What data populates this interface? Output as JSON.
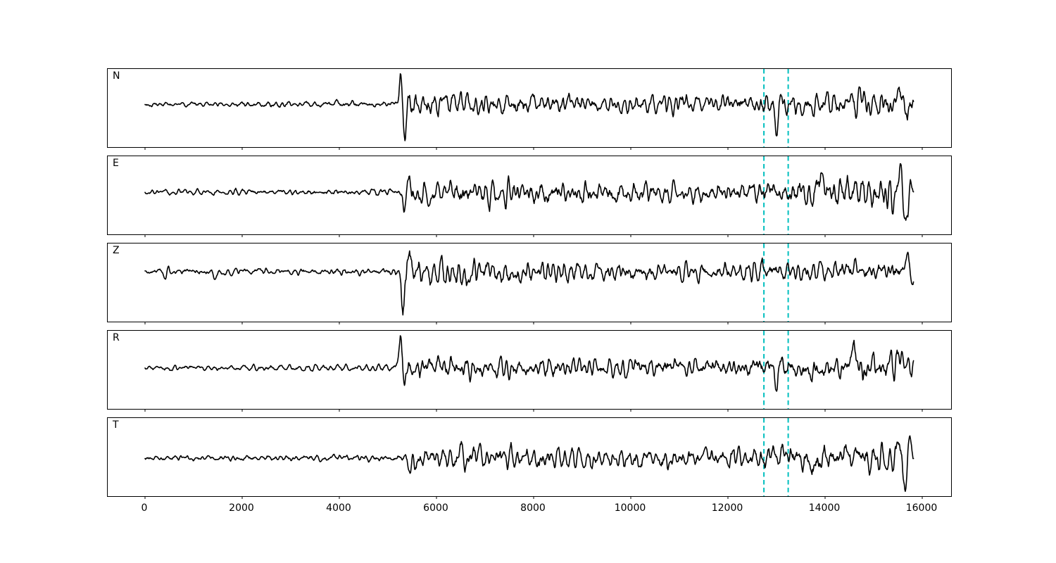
{
  "figure": {
    "background": "#ffffff",
    "plot_border_color": "#000000"
  },
  "chart_data": {
    "type": "line",
    "title": "",
    "xlabel": "",
    "ylabel": "",
    "grid": false,
    "legend": false,
    "description": "Five stacked seismogram component traces (N, E, Z, R, T) sharing one x-axis from 0 to ~15820 samples, with two vertical dashed teal event-window markers near x=12740 and x=13240. Quiet noise until a sharp arrival near x=5300, a coda, a secondary arrival inside the dashed window, and larger surface waves near the end of each trace.",
    "x_range": [
      -768,
      16594
    ],
    "x_data_end": 15820,
    "x_ticks": [
      0,
      2000,
      4000,
      6000,
      8000,
      10000,
      12000,
      14000,
      16000
    ],
    "x_tick_labels": [
      "0",
      "2000",
      "4000",
      "6000",
      "8000",
      "10000",
      "12000",
      "14000",
      "16000"
    ],
    "trace_color": "#000000",
    "trace_width": 1.6,
    "event_lines": {
      "x_values": [
        12740,
        13240
      ],
      "color": "#00bfbf",
      "style": "dashed",
      "dash": [
        6.5,
        4.5
      ],
      "width": 2
    },
    "channels": [
      {
        "label": "N",
        "seed": 101,
        "baseline": 50,
        "envelope": [
          [
            0,
            1.7
          ],
          [
            2500,
            1.9
          ],
          [
            4900,
            2.2
          ],
          [
            5180,
            2.5
          ],
          [
            5260,
            9
          ],
          [
            5500,
            8
          ],
          [
            6500,
            7
          ],
          [
            9000,
            6.2
          ],
          [
            12400,
            6
          ],
          [
            12700,
            7.5
          ],
          [
            13300,
            7
          ],
          [
            14000,
            8
          ],
          [
            15000,
            9
          ],
          [
            15500,
            10
          ],
          [
            15820,
            7
          ]
        ],
        "spikes": [
          [
            5270,
            34,
            55
          ],
          [
            5330,
            -38,
            60
          ],
          [
            12930,
            22,
            60
          ],
          [
            12990,
            -44,
            70
          ],
          [
            13080,
            18,
            60
          ],
          [
            15560,
            30,
            70
          ],
          [
            15650,
            -28,
            70
          ]
        ]
      },
      {
        "label": "E",
        "seed": 202,
        "baseline": 51,
        "envelope": [
          [
            0,
            1.6
          ],
          [
            3000,
            1.9
          ],
          [
            4900,
            2.1
          ],
          [
            5250,
            2.5
          ],
          [
            5330,
            8.5
          ],
          [
            5600,
            8.5
          ],
          [
            7500,
            8
          ],
          [
            10000,
            7
          ],
          [
            12400,
            6.5
          ],
          [
            12700,
            8
          ],
          [
            13400,
            7.5
          ],
          [
            14200,
            9
          ],
          [
            15000,
            10
          ],
          [
            15400,
            11
          ],
          [
            15820,
            8
          ]
        ],
        "spikes": [
          [
            5340,
            -26,
            55
          ],
          [
            5400,
            20,
            60
          ],
          [
            13900,
            24,
            80
          ],
          [
            15560,
            26,
            70
          ],
          [
            15660,
            -50,
            80
          ],
          [
            15740,
            20,
            60
          ]
        ]
      },
      {
        "label": "Z",
        "seed": 303,
        "baseline": 40,
        "envelope": [
          [
            0,
            1.8
          ],
          [
            1000,
            2.2
          ],
          [
            3000,
            2.0
          ],
          [
            4900,
            2.3
          ],
          [
            5200,
            3
          ],
          [
            5265,
            10
          ],
          [
            5600,
            9
          ],
          [
            7000,
            7.5
          ],
          [
            9000,
            6.5
          ],
          [
            12000,
            6
          ],
          [
            12700,
            6.5
          ],
          [
            13400,
            6
          ],
          [
            14500,
            6.5
          ],
          [
            15500,
            7
          ],
          [
            15820,
            6
          ]
        ],
        "spikes": [
          [
            430,
            -13,
            40
          ],
          [
            470,
            8,
            35
          ],
          [
            1440,
            -12,
            40
          ],
          [
            5240,
            30,
            45
          ],
          [
            5300,
            -64,
            70
          ],
          [
            5390,
            26,
            55
          ],
          [
            6600,
            -20,
            60
          ],
          [
            15700,
            24,
            60
          ],
          [
            15780,
            -16,
            50
          ]
        ]
      },
      {
        "label": "R",
        "seed": 404,
        "baseline": 53,
        "envelope": [
          [
            0,
            1.6
          ],
          [
            3000,
            1.9
          ],
          [
            4900,
            2.2
          ],
          [
            5200,
            2.5
          ],
          [
            5270,
            8.5
          ],
          [
            5600,
            8
          ],
          [
            7000,
            7
          ],
          [
            9500,
            6.3
          ],
          [
            12400,
            6
          ],
          [
            12700,
            7.5
          ],
          [
            13300,
            7
          ],
          [
            14200,
            8.5
          ],
          [
            15000,
            9.5
          ],
          [
            15500,
            9.5
          ],
          [
            15820,
            7
          ]
        ],
        "spikes": [
          [
            5265,
            38,
            55
          ],
          [
            5330,
            -30,
            60
          ],
          [
            12930,
            20,
            60
          ],
          [
            12990,
            -42,
            70
          ],
          [
            13080,
            20,
            60
          ],
          [
            14600,
            22,
            80
          ],
          [
            15550,
            22,
            70
          ]
        ]
      },
      {
        "label": "T",
        "seed": 505,
        "baseline": 57,
        "envelope": [
          [
            0,
            1.7
          ],
          [
            3000,
            2.0
          ],
          [
            5000,
            2.3
          ],
          [
            5350,
            2.6
          ],
          [
            5480,
            7
          ],
          [
            6000,
            7.5
          ],
          [
            8000,
            7
          ],
          [
            10000,
            6.5
          ],
          [
            12500,
            6.5
          ],
          [
            12800,
            7.5
          ],
          [
            13400,
            8
          ],
          [
            14300,
            9
          ],
          [
            15000,
            10
          ],
          [
            15500,
            12
          ],
          [
            15820,
            8
          ]
        ],
        "spikes": [
          [
            5470,
            -18,
            60
          ],
          [
            6900,
            16,
            50
          ],
          [
            13800,
            -22,
            70
          ],
          [
            15540,
            40,
            70
          ],
          [
            15640,
            -46,
            80
          ],
          [
            15750,
            24,
            60
          ]
        ]
      }
    ]
  }
}
